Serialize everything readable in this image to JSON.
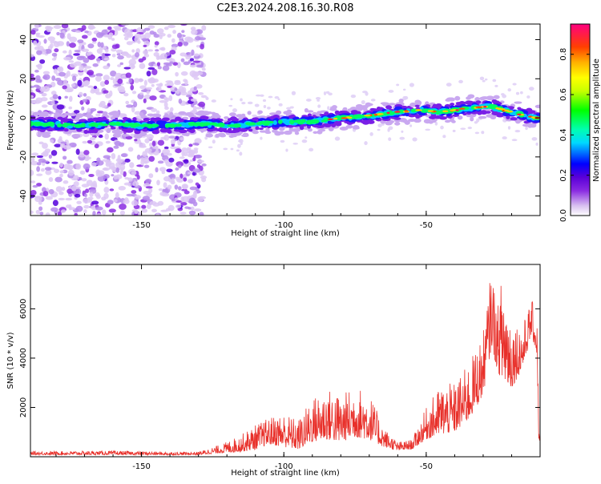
{
  "title": "C2E3.2024.208.16.30.R08",
  "chart_data": [
    {
      "type": "heatmap",
      "xlabel": "Height of straight line (km)",
      "ylabel": "Frequency (Hz)",
      "xlim": [
        -189,
        -10
      ],
      "ylim": [
        -50,
        48
      ],
      "xticks": [
        -150,
        -100,
        -50
      ],
      "yticks": [
        -40,
        -20,
        0,
        20,
        40
      ],
      "colorbar": {
        "label": "Normalized spectral amplitude",
        "range": [
          0,
          0.95
        ],
        "ticks": [
          0.0,
          0.2,
          0.4,
          0.6,
          0.8
        ]
      },
      "trace_center_hz": [
        [
          -189,
          -3
        ],
        [
          -170,
          -4
        ],
        [
          -160,
          -3
        ],
        [
          -150,
          -4
        ],
        [
          -140,
          -4
        ],
        [
          -128,
          -3
        ],
        [
          -120,
          -4
        ],
        [
          -110,
          -3
        ],
        [
          -100,
          -2
        ],
        [
          -90,
          -2
        ],
        [
          -80,
          0
        ],
        [
          -70,
          1
        ],
        [
          -60,
          3
        ],
        [
          -52,
          4
        ],
        [
          -45,
          3
        ],
        [
          -35,
          5
        ],
        [
          -28,
          6
        ],
        [
          -20,
          3
        ],
        [
          -12,
          0
        ]
      ],
      "noise_region_x": [
        -189,
        -128
      ],
      "grid": false
    },
    {
      "type": "line",
      "xlabel": "Height of straight line (km)",
      "ylabel": "SNR (10 * v/v)",
      "xlim": [
        -189,
        -10
      ],
      "ylim": [
        0,
        7800
      ],
      "xticks": [
        -150,
        -100,
        -50
      ],
      "yticks": [
        2000,
        4000,
        6000
      ],
      "series": [
        {
          "color": "#e8302a",
          "envelope": [
            [
              -189,
              80,
              220
            ],
            [
              -160,
              80,
              240
            ],
            [
              -140,
              70,
              200
            ],
            [
              -130,
              80,
              200
            ],
            [
              -122,
              150,
              500
            ],
            [
              -115,
              200,
              900
            ],
            [
              -110,
              300,
              1300
            ],
            [
              -105,
              500,
              1600
            ],
            [
              -100,
              400,
              1800
            ],
            [
              -95,
              300,
              1500
            ],
            [
              -90,
              600,
              2400
            ],
            [
              -85,
              700,
              2800
            ],
            [
              -80,
              600,
              2500
            ],
            [
              -75,
              800,
              2900
            ],
            [
              -70,
              700,
              2600
            ],
            [
              -65,
              400,
              1200
            ],
            [
              -60,
              250,
              600
            ],
            [
              -55,
              300,
              700
            ],
            [
              -50,
              700,
              2000
            ],
            [
              -45,
              900,
              2900
            ],
            [
              -40,
              1000,
              3000
            ],
            [
              -35,
              1500,
              3800
            ],
            [
              -30,
              2500,
              5000
            ],
            [
              -27,
              4500,
              7700
            ],
            [
              -25,
              3500,
              6000
            ],
            [
              -23,
              3000,
              7800
            ],
            [
              -20,
              2800,
              5600
            ],
            [
              -16,
              3600,
              5400
            ],
            [
              -13,
              5000,
              6400
            ],
            [
              -11,
              4000,
              5600
            ],
            [
              -10.5,
              600,
              1100
            ],
            [
              -10,
              700,
              1200
            ]
          ]
        }
      ],
      "grid": false
    }
  ]
}
